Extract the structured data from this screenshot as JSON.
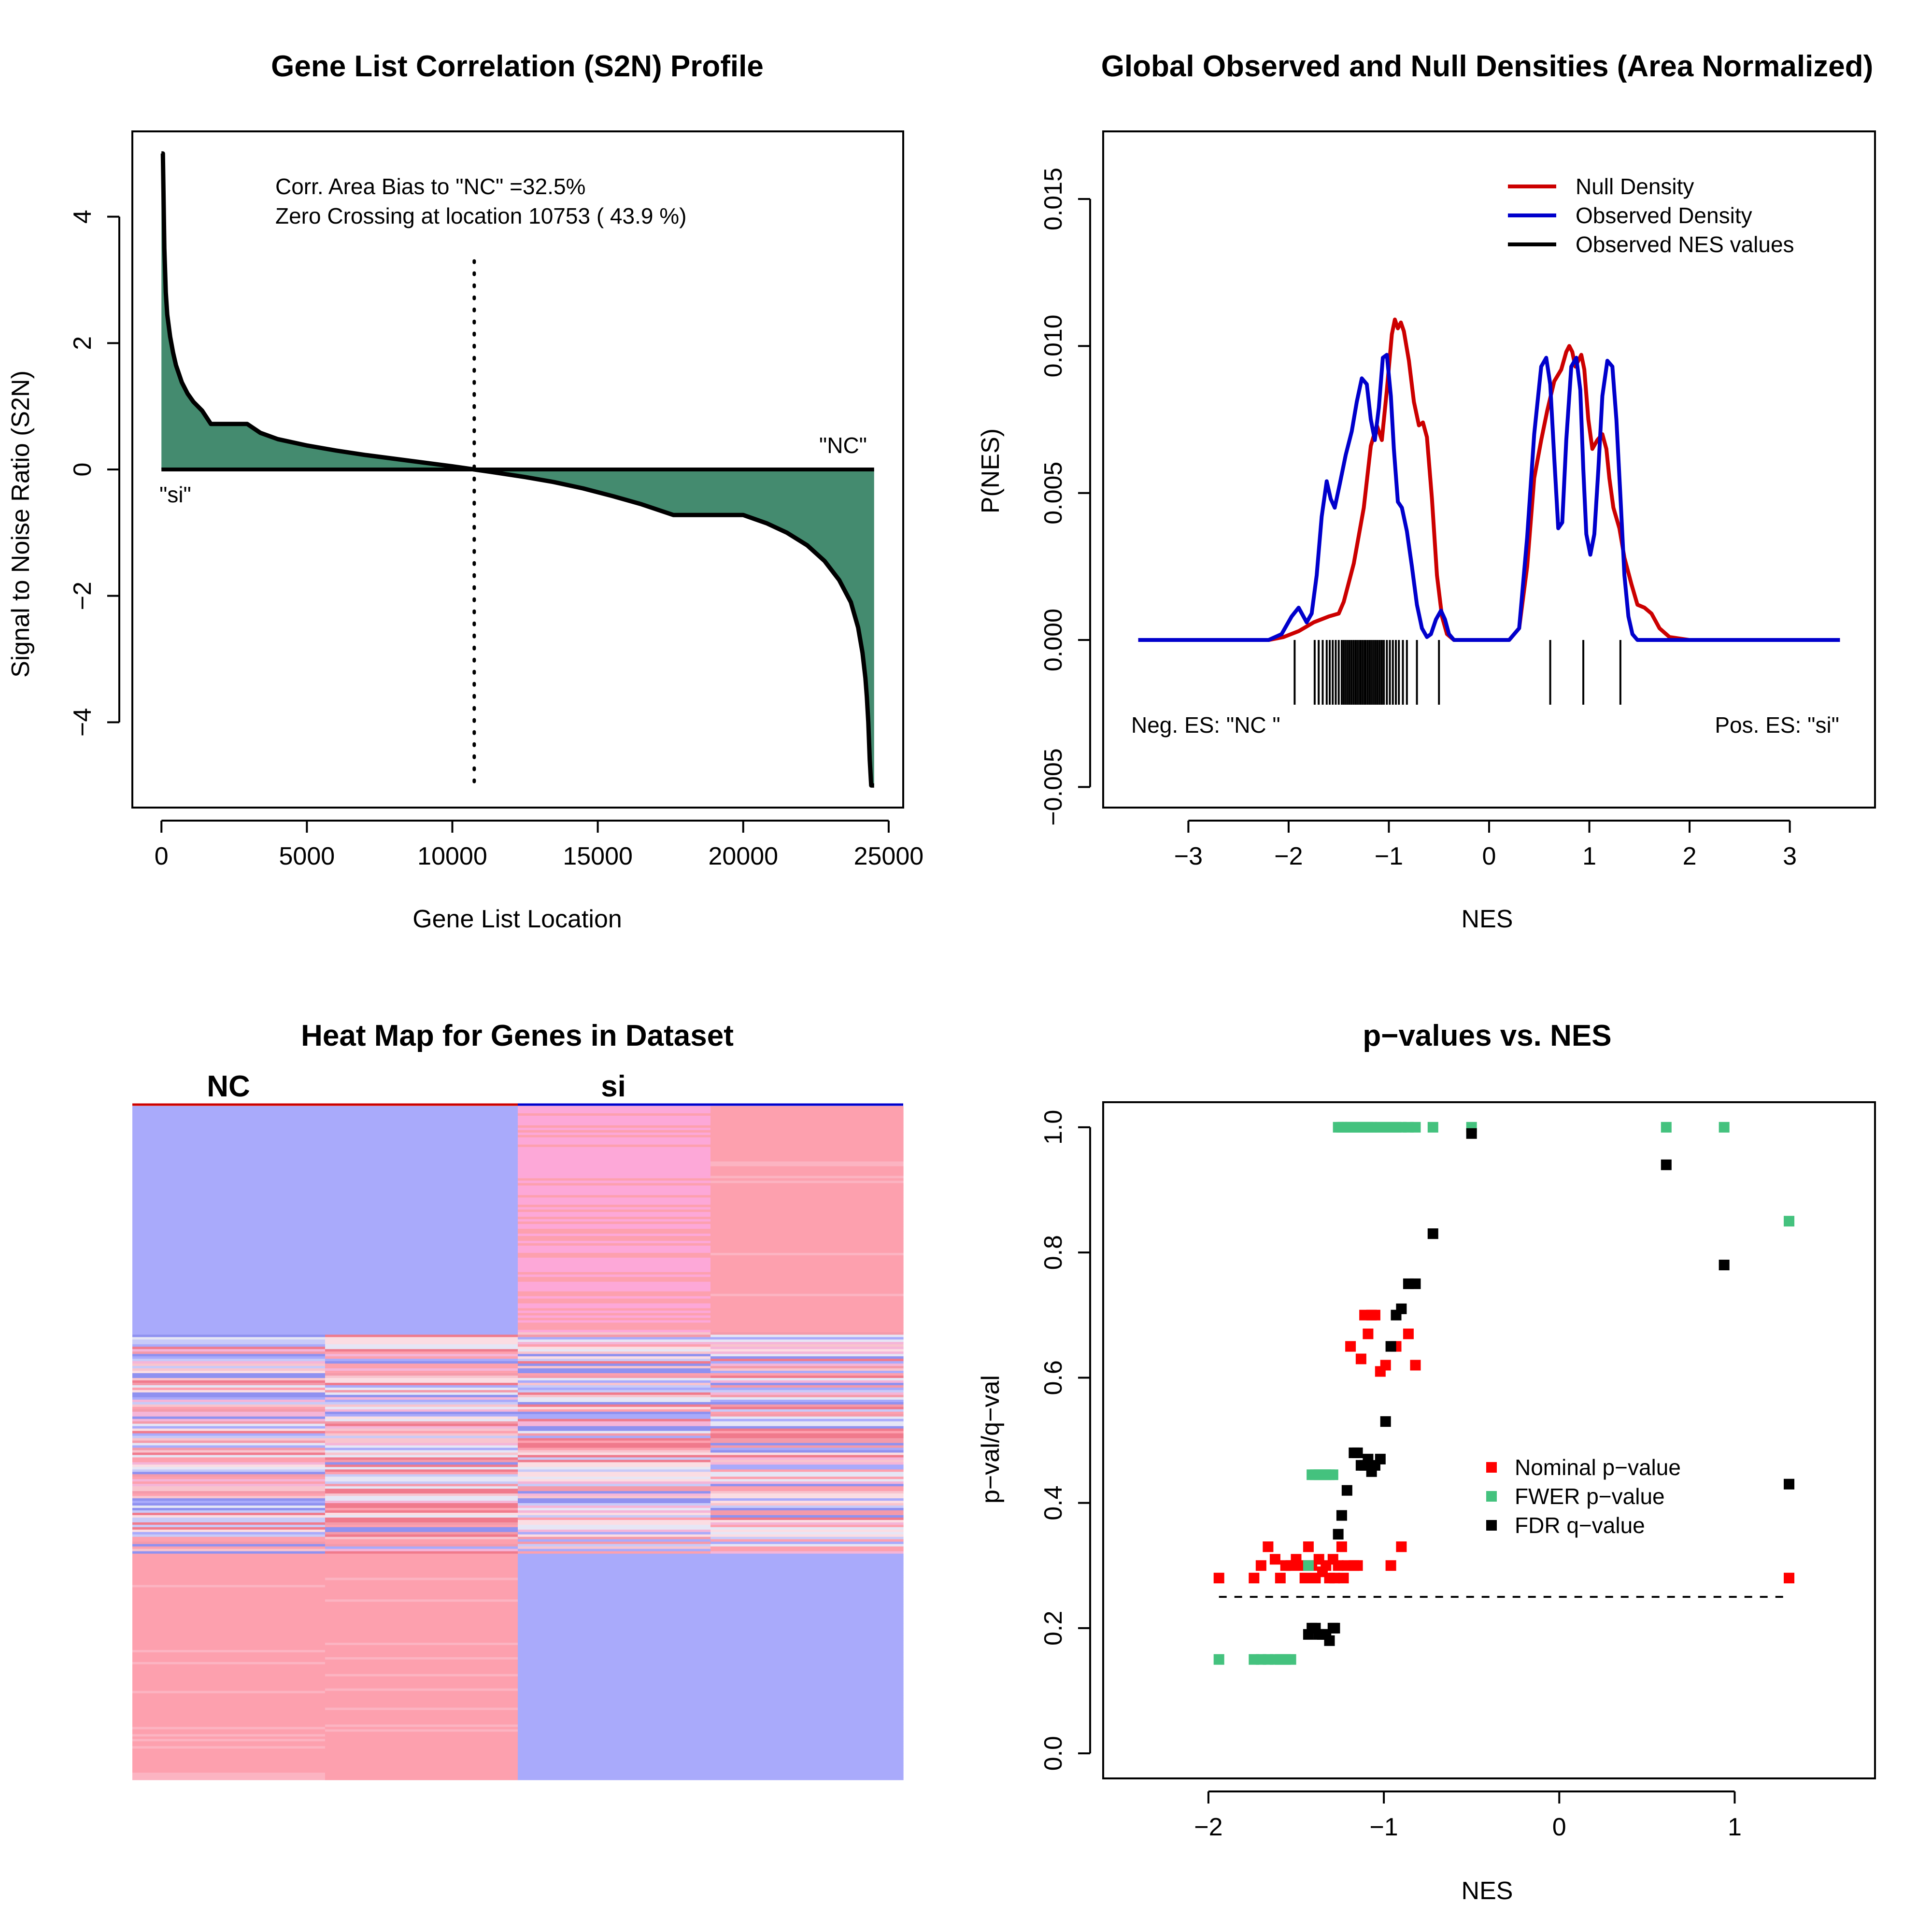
{
  "chart_data": [
    {
      "id": "s2n",
      "type": "area",
      "title": "Gene List Correlation (S2N) Profile",
      "xlabel": "Gene List Location",
      "ylabel": "Signal to Noise Ratio (S2N)",
      "xlim": [
        -1000,
        25500
      ],
      "ylim": [
        -5.35,
        5.35
      ],
      "xticks": [
        0,
        5000,
        10000,
        15000,
        20000,
        25000
      ],
      "xtick_labels": [
        "0",
        "5000",
        "10000",
        "15000",
        "20000",
        "25000"
      ],
      "yticks": [
        -4,
        -2,
        0,
        2,
        4
      ],
      "ytick_labels": [
        "−4",
        "−2",
        "0",
        "2",
        "4"
      ],
      "annotations": [
        "Corr. Area Bias to \"NC\" =32.5%",
        "Zero Crossing at location  10753  ( 43.9  %)"
      ],
      "label_left": "\"si\"",
      "label_right": "\"NC\"",
      "zero_crossing": 10753,
      "fill_color": "#448B6F",
      "x": [
        0,
        50,
        100,
        150,
        200,
        300,
        400,
        500,
        700,
        900,
        1100,
        1400,
        1700,
        2100,
        2500,
        2950,
        3400,
        4000,
        5000,
        6000,
        7000,
        8000,
        9000,
        10000,
        10753,
        11500,
        12500,
        13500,
        14500,
        15500,
        16500,
        17600,
        18500,
        19500,
        20000,
        20800,
        21500,
        22200,
        22800,
        23300,
        23700,
        23950,
        24100,
        24200,
        24250,
        24300,
        24350,
        24400,
        24450,
        24500
      ],
      "values": [
        5.0,
        5.0,
        3.5,
        2.8,
        2.45,
        2.1,
        1.85,
        1.65,
        1.38,
        1.2,
        1.07,
        0.93,
        0.72,
        0.72,
        0.72,
        0.72,
        0.58,
        0.48,
        0.38,
        0.3,
        0.23,
        0.17,
        0.11,
        0.05,
        0.0,
        -0.05,
        -0.12,
        -0.2,
        -0.3,
        -0.42,
        -0.55,
        -0.72,
        -0.72,
        -0.72,
        -0.72,
        -0.85,
        -1.0,
        -1.2,
        -1.45,
        -1.75,
        -2.1,
        -2.5,
        -2.9,
        -3.3,
        -3.6,
        -4.0,
        -4.6,
        -5.0,
        -5.0,
        -5.0
      ]
    },
    {
      "id": "density",
      "type": "line",
      "title": "Global Observed and Null Densities (Area Normalized)",
      "xlabel": "NES",
      "ylabel": "P(NES)",
      "xlim": [
        -3.85,
        3.85
      ],
      "ylim": [
        -0.0057,
        0.0173
      ],
      "xticks": [
        -3,
        -2,
        -1,
        0,
        1,
        2,
        3
      ],
      "xtick_labels": [
        "−3",
        "−2",
        "−1",
        "0",
        "1",
        "2",
        "3"
      ],
      "yticks": [
        -0.005,
        0.0,
        0.005,
        0.01,
        0.015
      ],
      "ytick_labels": [
        "−0.005",
        "0.000",
        "0.005",
        "0.010",
        "0.015"
      ],
      "legend_position": "top-right",
      "annotations": [
        "Neg. ES: \"NC \"",
        "Pos. ES: \"si\""
      ],
      "series": [
        {
          "name": "Null Density",
          "color": "#CC0000",
          "x": [
            -3.5,
            -2.2,
            -2.05,
            -1.9,
            -1.75,
            -1.6,
            -1.5,
            -1.45,
            -1.35,
            -1.25,
            -1.18,
            -1.12,
            -1.07,
            -1.02,
            -0.97,
            -0.94,
            -0.91,
            -0.88,
            -0.85,
            -0.8,
            -0.75,
            -0.7,
            -0.66,
            -0.62,
            -0.57,
            -0.52,
            -0.47,
            -0.42,
            -0.35,
            -0.25,
            0.2,
            0.3,
            0.38,
            0.45,
            0.52,
            0.58,
            0.65,
            0.72,
            0.77,
            0.8,
            0.83,
            0.86,
            0.89,
            0.92,
            0.95,
            0.99,
            1.03,
            1.08,
            1.13,
            1.17,
            1.2,
            1.24,
            1.3,
            1.35,
            1.42,
            1.48,
            1.55,
            1.62,
            1.7,
            1.8,
            2.0,
            3.5
          ],
          "values": [
            0,
            0,
            0.0001,
            0.0003,
            0.0006,
            0.0008,
            0.0009,
            0.0013,
            0.0026,
            0.0045,
            0.0066,
            0.0073,
            0.0068,
            0.0085,
            0.0104,
            0.0109,
            0.0106,
            0.0108,
            0.0105,
            0.0095,
            0.0081,
            0.0073,
            0.0074,
            0.0069,
            0.0048,
            0.0022,
            0.0008,
            0.0002,
            0,
            0,
            0,
            0.0004,
            0.0025,
            0.0055,
            0.0068,
            0.0078,
            0.0088,
            0.0092,
            0.0098,
            0.01,
            0.0098,
            0.0093,
            0.0095,
            0.0097,
            0.0092,
            0.0075,
            0.0065,
            0.0068,
            0.007,
            0.0065,
            0.0055,
            0.0045,
            0.0038,
            0.0028,
            0.0019,
            0.0012,
            0.0011,
            0.0009,
            0.0004,
            0.0001,
            0,
            0
          ]
        },
        {
          "name": "Observed Density",
          "color": "#0000CC",
          "x": [
            -3.5,
            -2.2,
            -2.07,
            -1.97,
            -1.9,
            -1.82,
            -1.77,
            -1.72,
            -1.67,
            -1.62,
            -1.58,
            -1.54,
            -1.49,
            -1.43,
            -1.37,
            -1.32,
            -1.27,
            -1.22,
            -1.18,
            -1.14,
            -1.1,
            -1.06,
            -1.02,
            -0.98,
            -0.95,
            -0.91,
            -0.87,
            -0.82,
            -0.77,
            -0.72,
            -0.67,
            -0.62,
            -0.58,
            -0.53,
            -0.48,
            -0.44,
            -0.4,
            -0.35,
            -0.3,
            0.2,
            0.3,
            0.38,
            0.45,
            0.52,
            0.57,
            0.61,
            0.65,
            0.69,
            0.73,
            0.77,
            0.82,
            0.87,
            0.91,
            0.94,
            0.97,
            1.01,
            1.05,
            1.09,
            1.13,
            1.18,
            1.23,
            1.27,
            1.31,
            1.35,
            1.39,
            1.43,
            1.48,
            1.55,
            1.62,
            1.7,
            3.5
          ],
          "values": [
            0,
            0,
            0.0002,
            0.0008,
            0.0011,
            0.0006,
            0.0009,
            0.0022,
            0.0042,
            0.0054,
            0.0048,
            0.0045,
            0.0053,
            0.0063,
            0.0071,
            0.0081,
            0.0089,
            0.0087,
            0.0075,
            0.0068,
            0.0079,
            0.0096,
            0.0097,
            0.0083,
            0.0065,
            0.0047,
            0.0045,
            0.0037,
            0.0025,
            0.0012,
            0.0004,
            0.0001,
            0.0002,
            0.0007,
            0.001,
            0.0007,
            0.0002,
            0,
            0,
            0,
            0.0004,
            0.0035,
            0.007,
            0.0093,
            0.0096,
            0.0087,
            0.0062,
            0.0038,
            0.004,
            0.0068,
            0.0093,
            0.0096,
            0.0085,
            0.0058,
            0.0036,
            0.0029,
            0.0036,
            0.0058,
            0.0083,
            0.0095,
            0.0093,
            0.0075,
            0.0049,
            0.0022,
            0.0008,
            0.0002,
            0,
            0,
            0,
            0,
            0
          ]
        },
        {
          "name": "Observed NES values",
          "color": "#000000",
          "rug": [
            -1.94,
            -1.74,
            -1.7,
            -1.66,
            -1.62,
            -1.59,
            -1.56,
            -1.53,
            -1.5,
            -1.47,
            -1.45,
            -1.43,
            -1.41,
            -1.39,
            -1.37,
            -1.35,
            -1.33,
            -1.31,
            -1.29,
            -1.28,
            -1.26,
            -1.24,
            -1.23,
            -1.21,
            -1.19,
            -1.17,
            -1.15,
            -1.13,
            -1.11,
            -1.09,
            -1.07,
            -1.05,
            -1.02,
            -0.99,
            -0.96,
            -0.93,
            -0.9,
            -0.86,
            -0.82,
            -0.72,
            -0.5,
            0.61,
            0.94,
            1.31
          ]
        }
      ]
    },
    {
      "id": "heatmap",
      "type": "heatmap",
      "title": "Heat Map for Genes in Dataset",
      "columns": [
        "NC",
        "si"
      ],
      "column_colors": [
        "#CC0000",
        "#0000CC"
      ],
      "samples": 4,
      "low_color": "#A9AAFB",
      "high_color": "#FDA0AE",
      "blocks": [
        {
          "from": 0.0,
          "to": 0.335,
          "pattern": [
            "low",
            "low",
            "highpink",
            "high"
          ]
        },
        {
          "from": 0.335,
          "to": 0.665,
          "pattern": [
            "mixed",
            "mixed",
            "mixed",
            "mixed"
          ]
        },
        {
          "from": 0.665,
          "to": 1.0,
          "pattern": [
            "high",
            "high",
            "low",
            "low"
          ]
        }
      ]
    },
    {
      "id": "pvalues",
      "type": "scatter",
      "title": "p−values vs. NES",
      "xlabel": "NES",
      "ylabel": "p−val/q−val",
      "xlim": [
        -2.6,
        1.8
      ],
      "ylim": [
        -0.04,
        1.04
      ],
      "xticks": [
        -2,
        -1,
        0,
        1
      ],
      "xtick_labels": [
        "−2",
        "−1",
        "0",
        "1"
      ],
      "yticks": [
        0.0,
        0.2,
        0.4,
        0.6,
        0.8,
        1.0
      ],
      "ytick_labels": [
        "0.0",
        "0.2",
        "0.4",
        "0.6",
        "0.8",
        "1.0"
      ],
      "threshold": 0.25,
      "threshold_x": [
        -1.94,
        1.31
      ],
      "legend_position": "center-right",
      "series": [
        {
          "name": "Nominal p−value",
          "color": "#FF0000",
          "x": [
            -1.94,
            -1.74,
            -1.7,
            -1.66,
            -1.62,
            -1.59,
            -1.56,
            -1.53,
            -1.5,
            -1.47,
            -1.45,
            -1.43,
            -1.41,
            -1.39,
            -1.37,
            -1.35,
            -1.33,
            -1.31,
            -1.29,
            -1.28,
            -1.26,
            -1.24,
            -1.23,
            -1.21,
            -1.19,
            -1.17,
            -1.15,
            -1.13,
            -1.11,
            -1.09,
            -1.07,
            -1.05,
            -1.02,
            -0.99,
            -0.96,
            -0.93,
            -0.9,
            -0.86,
            -0.82,
            1.31
          ],
          "values": [
            0.28,
            0.28,
            0.3,
            0.33,
            0.31,
            0.28,
            0.3,
            0.3,
            0.31,
            0.3,
            0.28,
            0.33,
            0.3,
            0.28,
            0.31,
            0.29,
            0.3,
            0.28,
            0.31,
            0.28,
            0.3,
            0.33,
            0.28,
            0.3,
            0.65,
            0.3,
            0.3,
            0.63,
            0.7,
            0.67,
            0.7,
            0.7,
            0.61,
            0.62,
            0.3,
            0.65,
            0.33,
            0.67,
            0.62,
            0.28
          ]
        },
        {
          "name": "FWER p−value",
          "color": "#44C27E",
          "x": [
            -1.94,
            -1.74,
            -1.7,
            -1.66,
            -1.62,
            -1.59,
            -1.56,
            -1.53,
            -1.43,
            -1.41,
            -1.39,
            -1.37,
            -1.35,
            -1.33,
            -1.31,
            -1.29,
            -1.26,
            -1.24,
            -1.23,
            -1.21,
            -1.19,
            -1.17,
            -1.15,
            -1.13,
            -1.11,
            -1.09,
            -1.07,
            -1.05,
            -1.02,
            -0.99,
            -0.96,
            -0.93,
            -0.9,
            -0.86,
            -0.82,
            -0.72,
            -0.5,
            0.61,
            0.94,
            1.31
          ],
          "values": [
            0.15,
            0.15,
            0.15,
            0.15,
            0.15,
            0.15,
            0.15,
            0.15,
            0.3,
            0.445,
            0.445,
            0.445,
            0.445,
            0.445,
            0.445,
            0.445,
            1.0,
            1.0,
            1.0,
            1.0,
            1.0,
            1.0,
            1.0,
            1.0,
            1.0,
            1.0,
            1.0,
            1.0,
            1.0,
            1.0,
            1.0,
            1.0,
            1.0,
            1.0,
            1.0,
            1.0,
            1.0,
            1.0,
            1.0,
            0.85
          ]
        },
        {
          "name": "FDR q−value",
          "color": "#000000",
          "x": [
            -1.43,
            -1.41,
            -1.39,
            -1.37,
            -1.35,
            -1.33,
            -1.31,
            -1.29,
            -1.28,
            -1.26,
            -1.24,
            -1.21,
            -1.17,
            -1.15,
            -1.13,
            -1.11,
            -1.09,
            -1.07,
            -1.05,
            -1.02,
            -0.99,
            -0.96,
            -0.93,
            -0.9,
            -0.86,
            -0.82,
            -0.72,
            -0.5,
            0.61,
            0.94,
            1.31
          ],
          "values": [
            0.19,
            0.2,
            0.2,
            0.19,
            0.19,
            0.19,
            0.18,
            0.2,
            0.2,
            0.35,
            0.38,
            0.42,
            0.48,
            0.48,
            0.46,
            0.46,
            0.47,
            0.45,
            0.46,
            0.47,
            0.53,
            0.65,
            0.7,
            0.71,
            0.75,
            0.75,
            0.83,
            0.99,
            0.94,
            0.78,
            0.43
          ]
        }
      ]
    }
  ]
}
